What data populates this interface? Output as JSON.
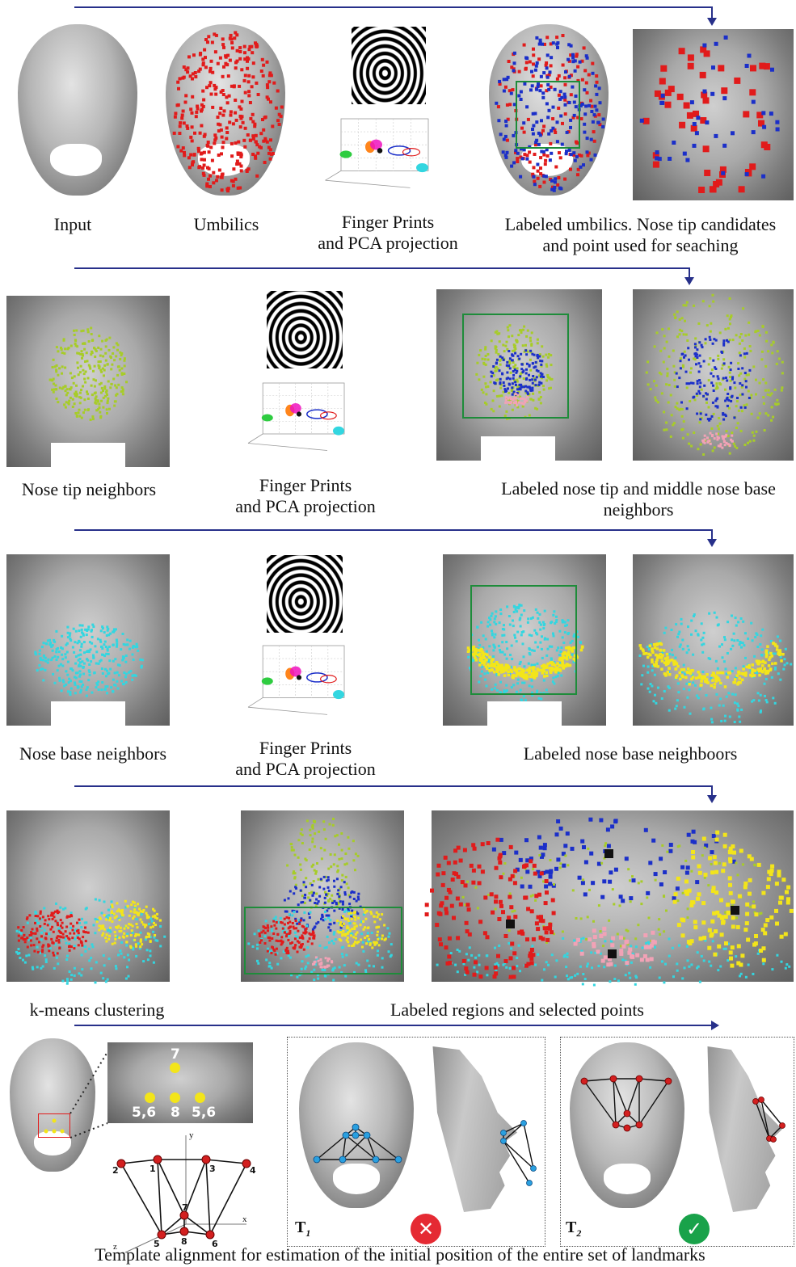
{
  "captions": {
    "input": "Input",
    "umbilics": "Umbilics",
    "finger_pca_1": "Finger Prints\nand PCA projection",
    "labeled_umbilics": "Labeled umbilics. Nose tip candidates\nand point used for seaching",
    "nose_tip_neighbors": "Nose tip neighbors",
    "finger_pca_2": "Finger Prints\nand PCA projection",
    "labeled_nose_tip": "Labeled nose tip and middle nose base\nneighbors",
    "nose_base_neighbors": "Nose base neighbors",
    "finger_pca_3": "Finger Prints\nand PCA projection",
    "labeled_nose_base": "Labeled nose base neighboors",
    "kmeans": "k-means clustering",
    "labeled_regions": "Labeled regions and selected points",
    "template_alignment": "Template alignment for estimation of  the initial position of the entire set of landmarks"
  },
  "landmark_labels": {
    "top": "7",
    "left": "5,6",
    "mid": "8",
    "right": "5,6"
  },
  "template_axes": {
    "x": "x",
    "y": "y",
    "z": "z"
  },
  "template_points": [
    "1",
    "2",
    "3",
    "4",
    "5",
    "6",
    "7",
    "8"
  ],
  "t1_label": {
    "main": "T",
    "sub": "1"
  },
  "t2_label": {
    "main": "T",
    "sub": "2"
  },
  "colors": {
    "arrow": "#27308a",
    "umbilic_red": "#e11b1b",
    "label_blue": "#1b2fc9",
    "yellowgreen": "#a7cc28",
    "cyan": "#33d6e0",
    "yellow": "#f3e51a",
    "pink": "#f2a2b6",
    "box_green": "#1e8c3a",
    "reject": "#e52a33",
    "accept": "#19a24a"
  },
  "status_icons": {
    "t1": "x-mark-icon",
    "t2": "check-mark-icon"
  }
}
